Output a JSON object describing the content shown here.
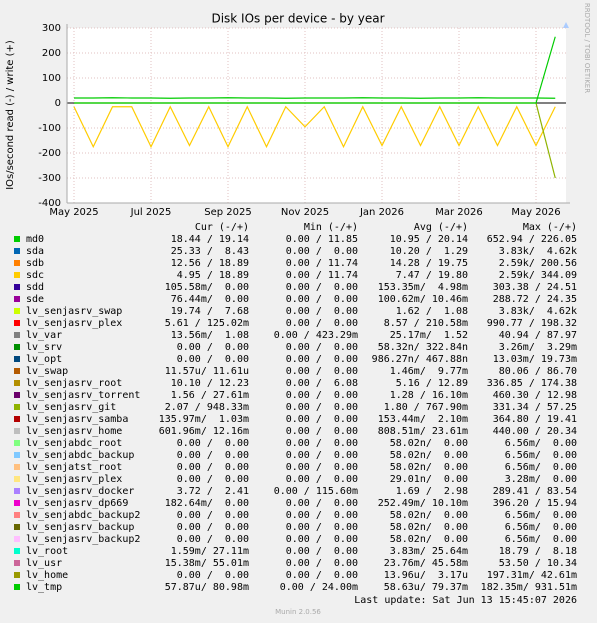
{
  "chart_data": {
    "type": "line",
    "title": "Disk IOs per device - by year",
    "y_label": "IOs/second read (-) / write (+)",
    "side_text": "RRDTOOL / TOBI OETIKER",
    "categories": [
      "May 2025",
      null,
      null,
      null,
      "Jul 2025",
      null,
      null,
      null,
      "Sep 2025",
      null,
      null,
      null,
      "Nov 2025",
      null,
      null,
      null,
      "Jan 2026",
      null,
      null,
      null,
      "Mar 2026",
      null,
      null,
      null,
      "May 2026",
      null
    ],
    "ylim": [
      -400,
      300
    ],
    "yticks": [
      -400,
      -300,
      -200,
      -100,
      0,
      100,
      200,
      300
    ],
    "grid": true,
    "legend_columns": [
      "Cur (-/+)",
      "Min (-/+)",
      "Avg (-/+)",
      "Max (-/+)"
    ],
    "series": [
      {
        "name": "md0",
        "color": "#00cc00",
        "values": [
          20,
          20,
          21,
          20,
          20,
          19,
          20,
          20,
          21,
          20,
          20,
          19,
          20,
          20,
          20,
          21,
          20,
          20,
          19,
          20,
          20,
          21,
          20,
          20,
          20,
          19
        ],
        "legend_values": [
          "18.44 / 19.14",
          "0.00 / 11.85",
          "10.95 / 20.14",
          "652.94 / 226.05"
        ]
      },
      {
        "name": "sda",
        "color": "#0066b3",
        "legend_values": [
          "25.33 /  8.43",
          "0.00 /  0.00",
          "10.20 /  1.29",
          "3.83k/  4.62k"
        ]
      },
      {
        "name": "sdb",
        "color": "#ff8000",
        "legend_values": [
          "12.56 / 18.89",
          "0.00 / 11.74",
          "14.28 / 19.75",
          "2.59k/ 200.56"
        ]
      },
      {
        "name": "sdc",
        "color": "#ffcc00",
        "values": [
          -15,
          -175,
          -15,
          -15,
          -175,
          -15,
          -170,
          -15,
          -175,
          -15,
          -175,
          -15,
          -95,
          -15,
          -175,
          -15,
          -170,
          -15,
          -170,
          -15,
          -170,
          -15,
          -170,
          -15,
          -170,
          -15
        ],
        "legend_values": [
          "4.95 / 18.89",
          "0.00 / 11.74",
          "7.47 / 19.80",
          "2.59k/ 344.09"
        ]
      },
      {
        "name": "sdd",
        "color": "#330099",
        "legend_values": [
          "105.58m/  0.00",
          "0.00 /  0.00",
          "153.35m/  4.98m",
          "303.38 / 24.51"
        ]
      },
      {
        "name": "sde",
        "color": "#990099",
        "legend_values": [
          "76.44m/  0.00",
          "0.00 /  0.00",
          "100.62m/ 10.46m",
          "288.72 / 24.35"
        ]
      },
      {
        "name": "lv_senjasrv_swap",
        "color": "#ccff00",
        "legend_values": [
          "19.74 /  7.68",
          "0.00 /  0.00",
          "1.62 /  1.08",
          "3.83k/  4.62k"
        ]
      },
      {
        "name": "lv_senjasrv_plex",
        "color": "#ff0000",
        "legend_values": [
          "5.61 / 125.02m",
          "0.00 /  0.00",
          "8.57 / 210.58m",
          "990.77 / 198.32"
        ]
      },
      {
        "name": "lv_var",
        "color": "#808080",
        "legend_values": [
          "13.56m/  1.08",
          "0.00 / 423.29m",
          "25.17m/  1.52",
          "40.94 / 87.97"
        ]
      },
      {
        "name": "lv_srv",
        "color": "#008f00",
        "legend_values": [
          "0.00 /  0.00",
          "0.00 /  0.00",
          "58.32n/ 322.84n",
          "3.26m/  3.29m"
        ]
      },
      {
        "name": "lv_opt",
        "color": "#00487d",
        "legend_values": [
          "0.00 /  0.00",
          "0.00 /  0.00",
          "986.27n/ 467.88n",
          "13.03m/ 19.73m"
        ]
      },
      {
        "name": "lv_swap",
        "color": "#b35a00",
        "legend_values": [
          "11.57u/ 11.61u",
          "0.00 /  0.00",
          "1.46m/  9.77m",
          "80.06 / 86.70"
        ]
      },
      {
        "name": "lv_senjasrv_root",
        "color": "#b38f00",
        "legend_values": [
          "10.10 / 12.23",
          "0.00 /  6.08",
          "5.16 / 12.89",
          "336.85 / 174.38"
        ]
      },
      {
        "name": "lv_senjasrv_torrent",
        "color": "#6b006b",
        "legend_values": [
          "1.56 / 27.61m",
          "0.00 /  0.00",
          "1.28 / 16.10m",
          "460.30 / 12.98"
        ]
      },
      {
        "name": "lv_senjasrv_git",
        "color": "#8fb300",
        "values": [
          0,
          0,
          0,
          0,
          0,
          0,
          0,
          0,
          0,
          0,
          0,
          0,
          0,
          0,
          0,
          0,
          0,
          0,
          0,
          0,
          0,
          0,
          0,
          0,
          0,
          -300
        ],
        "legend_values": [
          "2.07 / 948.33m",
          "0.00 /  0.00",
          "1.80 / 767.90m",
          "331.34 / 57.25"
        ]
      },
      {
        "name": "lv_senjasrv_samba",
        "color": "#b30000",
        "legend_values": [
          "135.97m/  1.03m",
          "0.00 /  0.00",
          "153.44m/  2.10m",
          "364.80 / 19.41"
        ]
      },
      {
        "name": "lv_senjasrv_home",
        "color": "#bebebe",
        "legend_values": [
          "601.96m/ 12.16m",
          "0.00 /  0.00",
          "808.51m/ 23.61m",
          "440.00 / 20.34"
        ]
      },
      {
        "name": "lv_senjabdc_root",
        "color": "#80ff80",
        "legend_values": [
          "0.00 /  0.00",
          "0.00 /  0.00",
          "58.02n/  0.00",
          "6.56m/  0.00"
        ]
      },
      {
        "name": "lv_senjabdc_backup",
        "color": "#80c9ff",
        "legend_values": [
          "0.00 /  0.00",
          "0.00 /  0.00",
          "58.02n/  0.00",
          "6.56m/  0.00"
        ]
      },
      {
        "name": "lv_senjatst_root",
        "color": "#ffc080",
        "legend_values": [
          "0.00 /  0.00",
          "0.00 /  0.00",
          "58.02n/  0.00",
          "6.56m/  0.00"
        ]
      },
      {
        "name": "lv_senjasrv_plex",
        "color": "#ffe680",
        "legend_values": [
          "0.00 /  0.00",
          "0.00 /  0.00",
          "29.01n/  0.00",
          "3.28m/  0.00"
        ]
      },
      {
        "name": "lv_senjasrv_docker",
        "color": "#aa80ff",
        "legend_values": [
          "3.72 /  2.41",
          "0.00 / 115.60m",
          "1.69 /  2.98",
          "289.41 / 83.54"
        ]
      },
      {
        "name": "lv_senjasrv_dp669",
        "color": "#ee00cc",
        "legend_values": [
          "182.64m/  0.00",
          "0.00 /  0.00",
          "252.49m/ 10.10m",
          "396.20 / 15.94"
        ]
      },
      {
        "name": "lv_senjabdc_backup2",
        "color": "#ff8080",
        "legend_values": [
          "0.00 /  0.00",
          "0.00 /  0.00",
          "58.02n/  0.00",
          "6.56m/  0.00"
        ]
      },
      {
        "name": "lv_senjasrv_backup",
        "color": "#666600",
        "legend_values": [
          "0.00 /  0.00",
          "0.00 /  0.00",
          "58.02n/  0.00",
          "6.56m/  0.00"
        ]
      },
      {
        "name": "lv_senjasrv_backup2",
        "color": "#ffbfff",
        "legend_values": [
          "0.00 /  0.00",
          "0.00 /  0.00",
          "58.02n/  0.00",
          "6.56m/  0.00"
        ]
      },
      {
        "name": "lv_root",
        "color": "#00ffcc",
        "legend_values": [
          "1.59m/ 27.11m",
          "0.00 /  0.00",
          "3.83m/ 25.64m",
          "18.79 /  8.18"
        ]
      },
      {
        "name": "lv_usr",
        "color": "#cc6699",
        "legend_values": [
          "15.38m/ 55.01m",
          "0.00 /  0.00",
          "23.76m/ 45.58m",
          "53.50 / 10.34"
        ]
      },
      {
        "name": "lv_home",
        "color": "#999900",
        "legend_values": [
          "0.00 /  0.00",
          "0.00 /  0.00",
          "13.96u/  3.17u",
          "197.31m/ 42.61m"
        ]
      },
      {
        "name": "lv_tmp",
        "color": "#00cc00",
        "values": [
          0,
          0,
          0,
          0,
          0,
          0,
          0,
          0,
          0,
          0,
          0,
          0,
          0,
          0,
          0,
          0,
          0,
          0,
          0,
          0,
          0,
          0,
          0,
          0,
          0,
          265
        ],
        "legend_values": [
          "57.87u/ 80.98m",
          "0.00 / 24.00m",
          "58.63u/ 79.37m",
          "182.35m/ 931.51m"
        ]
      }
    ],
    "last_update": "Last update: Sat Jun 13 15:45:07 2026",
    "footer": "Munin 2.0.56"
  }
}
